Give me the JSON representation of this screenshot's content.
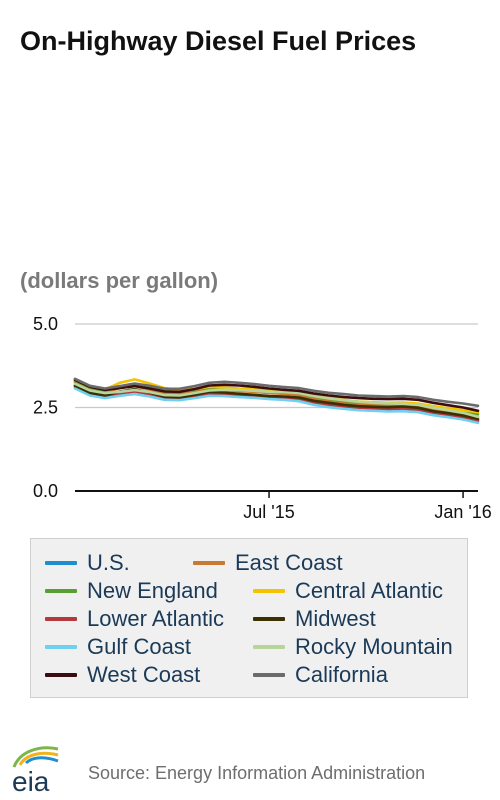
{
  "title": "On-Highway Diesel Fuel Prices",
  "unit_label": "(dollars per gallon)",
  "source": "Source: Energy Information Administration",
  "logo_text": "eia",
  "chart_data": {
    "type": "line",
    "title": "On-Highway Diesel Fuel Prices",
    "ylabel": "(dollars per gallon)",
    "ylim": [
      0,
      5
    ],
    "yticks": [
      0,
      2.5,
      5
    ],
    "ytick_labels": [
      "0.0",
      "2.5",
      "5.0"
    ],
    "xlim": [
      "2015-01-05",
      "2016-01-18"
    ],
    "xticks": [
      "2015-07-06",
      "2016-01-04"
    ],
    "xtick_labels": [
      "Jul '15",
      "Jan '16"
    ],
    "grid": "horizontal",
    "legend_position": "bottom",
    "x": [
      "2015-01-05",
      "2015-01-19",
      "2015-02-02",
      "2015-02-16",
      "2015-03-02",
      "2015-03-16",
      "2015-03-30",
      "2015-04-13",
      "2015-04-27",
      "2015-05-11",
      "2015-05-25",
      "2015-06-08",
      "2015-06-22",
      "2015-07-06",
      "2015-07-20",
      "2015-08-03",
      "2015-08-17",
      "2015-08-31",
      "2015-09-14",
      "2015-09-28",
      "2015-10-12",
      "2015-10-26",
      "2015-11-09",
      "2015-11-23",
      "2015-12-07",
      "2015-12-21",
      "2016-01-04",
      "2016-01-18"
    ],
    "series": [
      {
        "name": "U.S.",
        "color": "#1d8fce",
        "values": [
          3.17,
          2.95,
          2.87,
          2.95,
          3.0,
          2.92,
          2.81,
          2.8,
          2.86,
          2.93,
          2.92,
          2.89,
          2.87,
          2.83,
          2.82,
          2.78,
          2.68,
          2.61,
          2.56,
          2.52,
          2.5,
          2.48,
          2.49,
          2.46,
          2.37,
          2.31,
          2.24,
          2.12
        ]
      },
      {
        "name": "East Coast",
        "color": "#c87a32",
        "values": [
          3.26,
          3.03,
          2.95,
          3.08,
          3.14,
          3.04,
          2.93,
          2.91,
          2.97,
          3.03,
          3.02,
          2.99,
          2.97,
          2.93,
          2.91,
          2.87,
          2.77,
          2.7,
          2.65,
          2.61,
          2.59,
          2.57,
          2.57,
          2.54,
          2.46,
          2.4,
          2.33,
          2.22
        ]
      },
      {
        "name": "New England",
        "color": "#5a9e2f",
        "values": [
          3.3,
          3.1,
          3.0,
          3.12,
          3.2,
          3.1,
          3.0,
          2.98,
          3.04,
          3.1,
          3.08,
          3.05,
          3.03,
          2.99,
          2.97,
          2.93,
          2.83,
          2.76,
          2.7,
          2.66,
          2.64,
          2.62,
          2.63,
          2.6,
          2.52,
          2.46,
          2.4,
          2.3
        ]
      },
      {
        "name": "Central Atlantic",
        "color": "#f5c400",
        "values": [
          3.34,
          3.12,
          3.04,
          3.24,
          3.34,
          3.22,
          3.08,
          3.02,
          3.06,
          3.12,
          3.1,
          3.07,
          3.05,
          3.01,
          2.99,
          2.95,
          2.85,
          2.78,
          2.73,
          2.68,
          2.66,
          2.64,
          2.65,
          2.62,
          2.54,
          2.48,
          2.42,
          2.36
        ]
      },
      {
        "name": "Lower Atlantic",
        "color": "#b3393f",
        "values": [
          3.12,
          2.92,
          2.84,
          2.92,
          2.98,
          2.9,
          2.8,
          2.78,
          2.84,
          2.9,
          2.89,
          2.86,
          2.84,
          2.8,
          2.79,
          2.75,
          2.65,
          2.58,
          2.53,
          2.49,
          2.47,
          2.45,
          2.46,
          2.43,
          2.34,
          2.28,
          2.21,
          2.1
        ]
      },
      {
        "name": "Midwest",
        "color": "#3a3000",
        "values": [
          3.15,
          2.93,
          2.86,
          2.98,
          3.05,
          2.95,
          2.82,
          2.8,
          2.88,
          2.97,
          2.95,
          2.91,
          2.88,
          2.84,
          2.83,
          2.8,
          2.7,
          2.64,
          2.58,
          2.54,
          2.52,
          2.51,
          2.53,
          2.49,
          2.39,
          2.33,
          2.26,
          2.16
        ]
      },
      {
        "name": "Gulf Coast",
        "color": "#6fd0f2",
        "values": [
          3.07,
          2.86,
          2.78,
          2.85,
          2.9,
          2.83,
          2.73,
          2.72,
          2.78,
          2.85,
          2.84,
          2.81,
          2.79,
          2.75,
          2.73,
          2.69,
          2.58,
          2.51,
          2.46,
          2.42,
          2.4,
          2.38,
          2.39,
          2.36,
          2.27,
          2.21,
          2.14,
          2.04
        ]
      },
      {
        "name": "Rocky Mountain",
        "color": "#b7d49b",
        "values": [
          3.21,
          3.01,
          2.93,
          2.97,
          3.02,
          2.96,
          2.87,
          2.86,
          2.93,
          3.01,
          3.03,
          3.02,
          3.0,
          2.97,
          2.96,
          2.93,
          2.84,
          2.77,
          2.72,
          2.67,
          2.64,
          2.62,
          2.61,
          2.58,
          2.49,
          2.42,
          2.34,
          2.22
        ]
      },
      {
        "name": "West Coast",
        "color": "#3b0d0f",
        "values": [
          3.33,
          3.12,
          3.03,
          3.08,
          3.14,
          3.07,
          2.98,
          2.97,
          3.05,
          3.16,
          3.18,
          3.16,
          3.12,
          3.07,
          3.03,
          3.0,
          2.92,
          2.86,
          2.81,
          2.78,
          2.76,
          2.75,
          2.76,
          2.73,
          2.64,
          2.57,
          2.5,
          2.4
        ]
      },
      {
        "name": "California",
        "color": "#6b6b6b",
        "values": [
          3.36,
          3.15,
          3.07,
          3.14,
          3.22,
          3.15,
          3.06,
          3.06,
          3.14,
          3.24,
          3.27,
          3.24,
          3.2,
          3.15,
          3.11,
          3.08,
          3.0,
          2.94,
          2.9,
          2.86,
          2.84,
          2.83,
          2.84,
          2.81,
          2.73,
          2.67,
          2.62,
          2.55
        ]
      }
    ]
  }
}
